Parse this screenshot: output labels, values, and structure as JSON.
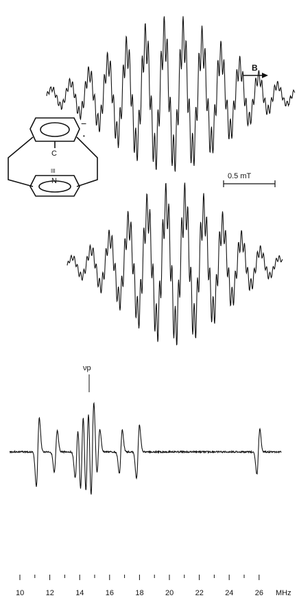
{
  "labels": {
    "field_arrow": "B",
    "scale_bar": "0.5 mT",
    "proton_frequency": "νp",
    "freq_unit": "MHz",
    "ticks": [
      "10",
      "12",
      "14",
      "16",
      "18",
      "20",
      "22",
      "24",
      "26"
    ]
  },
  "molecule": {
    "atom_c": "C",
    "atom_n": "N",
    "triple_bond": "III",
    "charge": "−",
    "radical": "•"
  },
  "endor_axis": {
    "min": 10,
    "max": 26.5,
    "unit": "MHz"
  },
  "endor_lines_mhz": [
    11.2,
    12.4,
    13.8,
    14.15,
    14.5,
    14.85,
    15.25,
    16.75,
    17.9,
    25.95
  ],
  "colors": {
    "ink": "#111111",
    "background": "#ffffff"
  }
}
